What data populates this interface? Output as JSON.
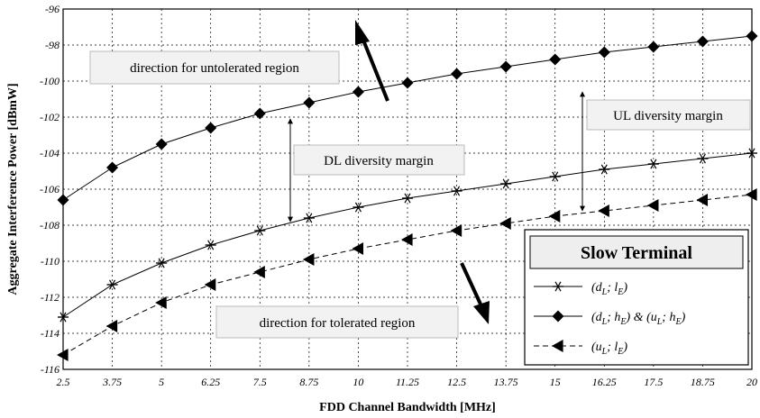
{
  "chart_data": {
    "type": "line",
    "xlabel": "FDD Channel Bandwidth [MHz]",
    "ylabel": "Aggregate Interference Power [dBmW]",
    "x": [
      2.5,
      3.75,
      5,
      6.25,
      7.5,
      8.75,
      10,
      11.25,
      12.5,
      13.75,
      15,
      16.25,
      17.5,
      18.75,
      20
    ],
    "x_tick_labels": [
      "2.5",
      "3.75",
      "5",
      "6.25",
      "7.5",
      "8.75",
      "10",
      "11.25",
      "12.5",
      "13.75",
      "15",
      "16.25",
      "17.5",
      "18.75",
      "20"
    ],
    "y_ticks": [
      -96,
      -98,
      -100,
      -102,
      -104,
      -106,
      -108,
      -110,
      -112,
      -114,
      -116
    ],
    "y_tick_labels": [
      "-96",
      "-98",
      "-100",
      "-102",
      "-104",
      "-106",
      "-108",
      "-110",
      "-112",
      "-114",
      "-116"
    ],
    "xlim": [
      2.5,
      20
    ],
    "ylim": [
      -116,
      -96
    ],
    "grid": true,
    "legend_position": "bottom-right",
    "series": [
      {
        "name": "(d_L; l_E)",
        "marker": "asterisk",
        "line_style": "solid",
        "values": [
          -113.1,
          -111.3,
          -110.1,
          -109.1,
          -108.3,
          -107.6,
          -107.0,
          -106.5,
          -106.1,
          -105.7,
          -105.3,
          -104.9,
          -104.6,
          -104.3,
          -104.0
        ]
      },
      {
        "name": "(d_L; h_E) & (u_L; h_E)",
        "marker": "diamond",
        "line_style": "solid",
        "values": [
          -106.6,
          -104.8,
          -103.5,
          -102.6,
          -101.8,
          -101.2,
          -100.6,
          -100.1,
          -99.6,
          -99.2,
          -98.8,
          -98.4,
          -98.1,
          -97.8,
          -97.5
        ]
      },
      {
        "name": "(u_L; l_E)",
        "marker": "triangle-left",
        "line_style": "dashed",
        "values": [
          -115.2,
          -113.6,
          -112.3,
          -111.3,
          -110.6,
          -109.9,
          -109.3,
          -108.8,
          -108.3,
          -107.9,
          -107.5,
          -107.2,
          -106.9,
          -106.6,
          -106.3
        ]
      }
    ],
    "legend": {
      "title": "Slow Terminal",
      "entries": [
        {
          "prefix": "(d",
          "sub1": "L",
          "mid": "; l",
          "sub2": "E",
          "suffix": ")"
        },
        {
          "prefix": "(d",
          "sub1": "L",
          "mid": "; h",
          "sub2": "E",
          "suffix": ") & (u",
          "sub3": "L",
          "mid2": "; h",
          "sub4": "E",
          "suffix2": ")"
        },
        {
          "prefix": "(u",
          "sub1": "L",
          "mid": "; l",
          "sub2": "E",
          "suffix": ")"
        }
      ]
    },
    "annotations": {
      "untolerated": "direction for untolerated region",
      "tolerated": "direction for tolerated region",
      "dl_margin": "DL diversity margin",
      "ul_margin": "UL diversity margin"
    }
  }
}
